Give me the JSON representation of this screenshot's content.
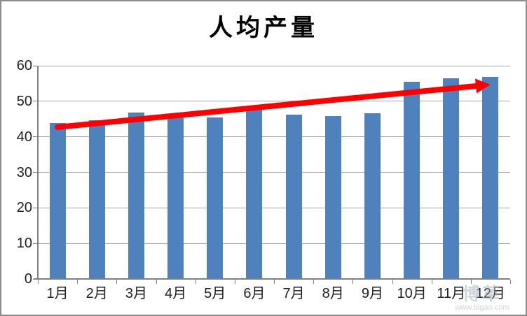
{
  "frame": {
    "background": "#ffffff",
    "border_color": "#8c8c8c"
  },
  "chart_data": {
    "type": "bar",
    "title": "人均产量",
    "categories": [
      "1月",
      "2月",
      "3月",
      "4月",
      "5月",
      "6月",
      "7月",
      "8月",
      "9月",
      "10月",
      "11月",
      "12月"
    ],
    "values": [
      43.8,
      44.6,
      46.8,
      45.9,
      45.4,
      47.8,
      46.3,
      45.9,
      46.6,
      55.4,
      56.5,
      56.9
    ],
    "xlabel": "",
    "ylabel": "",
    "ylim": [
      0,
      60
    ],
    "y_ticks": [
      "0",
      "10",
      "20",
      "30",
      "40",
      "50",
      "60"
    ],
    "grid": true,
    "legend": "none",
    "bar_color": "#4F81BD",
    "gridline_color": "#a6a6a6",
    "axis_color": "#7f7f7f",
    "text_color": "#1f1f1f",
    "trend_arrow": {
      "color": "#FF0000",
      "start": {
        "category_index": 0,
        "value": 42.7
      },
      "end": {
        "category_index": 11,
        "value": 54.7
      }
    }
  },
  "watermark": {
    "logo_text": "博革",
    "url_text": "www.bigao.com"
  }
}
